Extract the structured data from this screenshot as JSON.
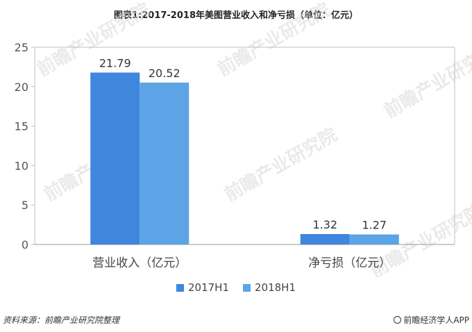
{
  "title": "图表1:2017-2018年美图营业收入和净亏损（单位：亿元）",
  "source": "资料来源：前瞻产业研究院整理",
  "brand": "前瞻经济学人APP",
  "watermark": "前瞻产业研究院",
  "chart_data": {
    "type": "bar",
    "title": "图表1:2017-2018年美图营业收入和净亏损（单位：亿元）",
    "categories": [
      "营业收入（亿元）",
      "净亏损（亿元）"
    ],
    "series": [
      {
        "name": "2017H1",
        "values": [
          21.79,
          1.32
        ],
        "color": "#3f86dd"
      },
      {
        "name": "2018H1",
        "values": [
          20.52,
          1.27
        ],
        "color": "#5ca4e6"
      }
    ],
    "yticks": [
      "0",
      "5",
      "10",
      "15",
      "20",
      "25"
    ],
    "ylim": [
      0,
      25
    ],
    "grid": false,
    "legend": "bottom"
  }
}
